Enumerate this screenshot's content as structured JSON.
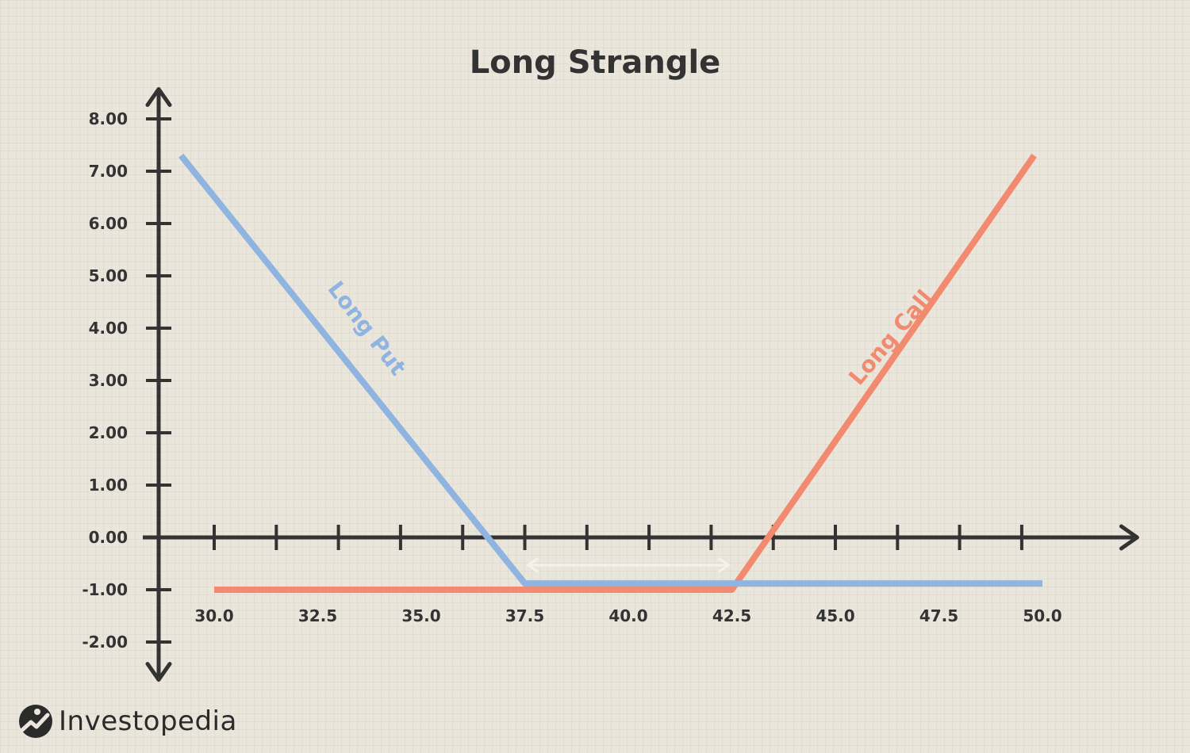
{
  "chart_data": {
    "type": "line",
    "title": "Long Strangle",
    "xlabel": "",
    "ylabel": "",
    "xlim": [
      27.5,
      52
    ],
    "ylim": [
      -2.6,
      8.6
    ],
    "x_ticks": [
      30.0,
      32.5,
      35.0,
      37.5,
      40.0,
      42.5,
      45.0,
      47.5,
      50.0
    ],
    "x_tick_labels": [
      "30.0",
      "32.5",
      "35.0",
      "37.5",
      "40.0",
      "42.5",
      "45.0",
      "47.5",
      "50.0"
    ],
    "y_ticks": [
      8,
      7,
      6,
      5,
      4,
      3,
      2,
      1,
      0,
      -1,
      -2
    ],
    "y_tick_labels": [
      "8.00",
      "7.00",
      "6.00",
      "5.00",
      "4.00",
      "3.00",
      "2.00",
      "1.00",
      "0.00",
      "-1.00",
      "-2.00"
    ],
    "grid": false,
    "series": [
      {
        "name": "Long Put",
        "color": "#8fb4e0",
        "points": [
          [
            29.2,
            7.3
          ],
          [
            37.5,
            -0.88
          ],
          [
            50.0,
            -0.88
          ]
        ]
      },
      {
        "name": "Long Call",
        "color": "#f28a70",
        "points": [
          [
            30.0,
            -1.0
          ],
          [
            42.5,
            -1.0
          ],
          [
            49.8,
            7.3
          ]
        ]
      }
    ],
    "annotations": [
      {
        "type": "double-arrow",
        "from": [
          37.5,
          -0.53
        ],
        "to": [
          42.5,
          -0.53
        ],
        "color": "#f5f2ec"
      }
    ]
  },
  "brand": {
    "name": "Investopedia"
  }
}
